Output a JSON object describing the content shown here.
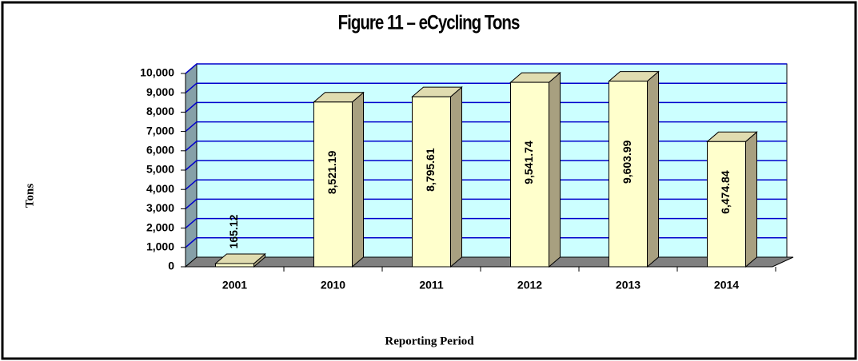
{
  "chart_data": {
    "type": "bar3d",
    "title": "Figure 11 – eCycling Tons",
    "y_label": "Tons",
    "x_label": "Reporting Period",
    "categories": [
      "2001",
      "2010",
      "2011",
      "2012",
      "2013",
      "2014"
    ],
    "values": [
      165.12,
      8521.19,
      8795.61,
      9541.74,
      9603.99,
      6474.84
    ],
    "value_labels": [
      "165.12",
      "8,521.19",
      "8,795.61",
      "9,541.74",
      "9,603.99",
      "6,474.84"
    ],
    "color": "#ffffcc",
    "ylim": [
      0,
      10000
    ],
    "yticks": [
      0,
      {
        "value": 1000,
        "label": "1,000"
      },
      {
        "value": 2000,
        "label": "2,000"
      },
      {
        "value": 3000,
        "label": "3,000"
      },
      {
        "value": 4000,
        "label": "4,000"
      },
      {
        "value": 5000,
        "label": "5,000"
      },
      {
        "value": 6000,
        "label": "6,000"
      },
      {
        "value": 7000,
        "label": "7,000"
      },
      {
        "value": 8000,
        "label": "8,000"
      },
      {
        "value": 9000,
        "label": "9,000"
      },
      {
        "value": 10000,
        "label": "10,000"
      }
    ],
    "grid": true
  }
}
